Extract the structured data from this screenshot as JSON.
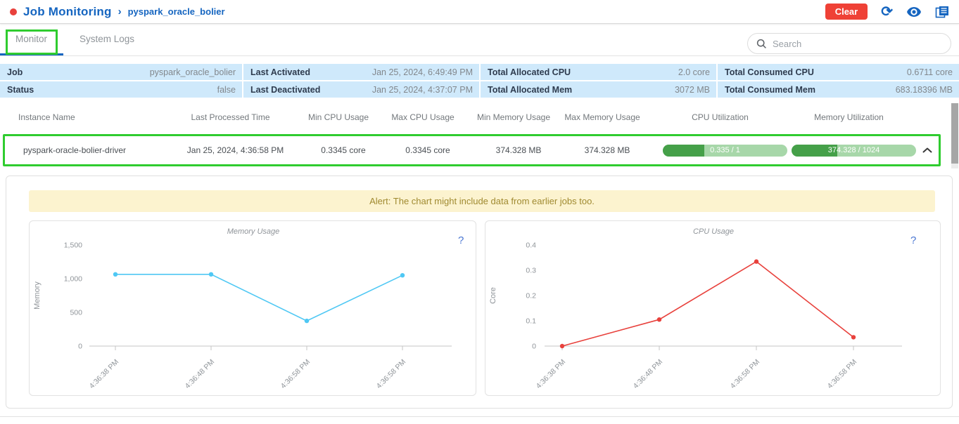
{
  "header": {
    "title": "Job Monitoring",
    "separator": "›",
    "subtitle": "pyspark_oracle_bolier",
    "clear_label": "Clear"
  },
  "icons": {
    "status_dot": "red-dot",
    "refresh": "⟳",
    "eye": "eye",
    "logs": "document-stack",
    "search": "magnifier",
    "chevron_up": "chevron-up",
    "help": "?"
  },
  "tabs": {
    "monitor": "Monitor",
    "system_logs": "System Logs"
  },
  "search": {
    "placeholder": "Search"
  },
  "summary": {
    "rows": [
      [
        {
          "label": "Job",
          "value": "pyspark_oracle_bolier"
        },
        {
          "label": "Last Activated",
          "value": "Jan 25, 2024, 6:49:49 PM"
        },
        {
          "label": "Total Allocated CPU",
          "value": "2.0 core"
        },
        {
          "label": "Total Consumed CPU",
          "value": "0.6711 core"
        }
      ],
      [
        {
          "label": "Status",
          "value": "false"
        },
        {
          "label": "Last Deactivated",
          "value": "Jan 25, 2024, 4:37:07 PM"
        },
        {
          "label": "Total Allocated Mem",
          "value": "3072 MB"
        },
        {
          "label": "Total Consumed Mem",
          "value": "683.18396 MB"
        }
      ]
    ]
  },
  "instances": {
    "headers": [
      "Instance Name",
      "Last Processed Time",
      "Min CPU Usage",
      "Max CPU Usage",
      "Min Memory Usage",
      "Max Memory Usage",
      "CPU Utilization",
      "Memory Utilization"
    ],
    "rows": [
      {
        "name": "pyspark-oracle-bolier-driver",
        "last_processed": "Jan 25, 2024, 4:36:58 PM",
        "min_cpu": "0.3345 core",
        "max_cpu": "0.3345 core",
        "min_mem": "374.328 MB",
        "max_mem": "374.328 MB",
        "cpu_util": {
          "label": "0.335 / 1",
          "value": 0.335,
          "max": 1
        },
        "mem_util": {
          "label": "374.328 / 1024",
          "value": 374.328,
          "max": 1024
        }
      }
    ]
  },
  "alert": {
    "text": "Alert: The chart might include data from earlier jobs too."
  },
  "chart_data": [
    {
      "type": "line",
      "title": "Memory Usage",
      "ylabel": "Memory",
      "categories": [
        "4:36:38 PM",
        "4:36:48 PM",
        "4:36:58 PM",
        "4:36:58 PM"
      ],
      "values": [
        1065,
        1065,
        374.328,
        1050
      ],
      "ylim": [
        0,
        1500
      ],
      "yticks": [
        0,
        500,
        1000,
        1500
      ],
      "ytick_labels": [
        "0",
        "500",
        "1,000",
        "1,500"
      ],
      "line_color": "#4fc8f4",
      "help_icon": "?",
      "legend": "none",
      "grid": false
    },
    {
      "type": "line",
      "title": "CPU Usage",
      "ylabel": "Core",
      "categories": [
        "4:36:38 PM",
        "4:36:48 PM",
        "4:36:58 PM",
        "4:36:58 PM"
      ],
      "values": [
        0,
        0.105,
        0.3345,
        0.035
      ],
      "ylim": [
        0,
        0.4
      ],
      "yticks": [
        0,
        0.1,
        0.2,
        0.3,
        0.4
      ],
      "ytick_labels": [
        "0",
        "0.1",
        "0.2",
        "0.3",
        "0.4"
      ],
      "line_color": "#e8413c",
      "help_icon": "?",
      "legend": "none",
      "grid": false
    }
  ],
  "colors": {
    "accent_blue": "#1565c0",
    "button_red": "#ef4136",
    "chart_red": "#e8413c",
    "chart_cyan": "#4fc8f4",
    "summary_row_blue": "#cfe9fb",
    "annotation_green": "#2fcc2f",
    "bar_dark_green": "#45a049",
    "bar_light_green": "#a7d7a9",
    "alert_bg": "#fcf3cf",
    "alert_text": "#a08a30"
  }
}
